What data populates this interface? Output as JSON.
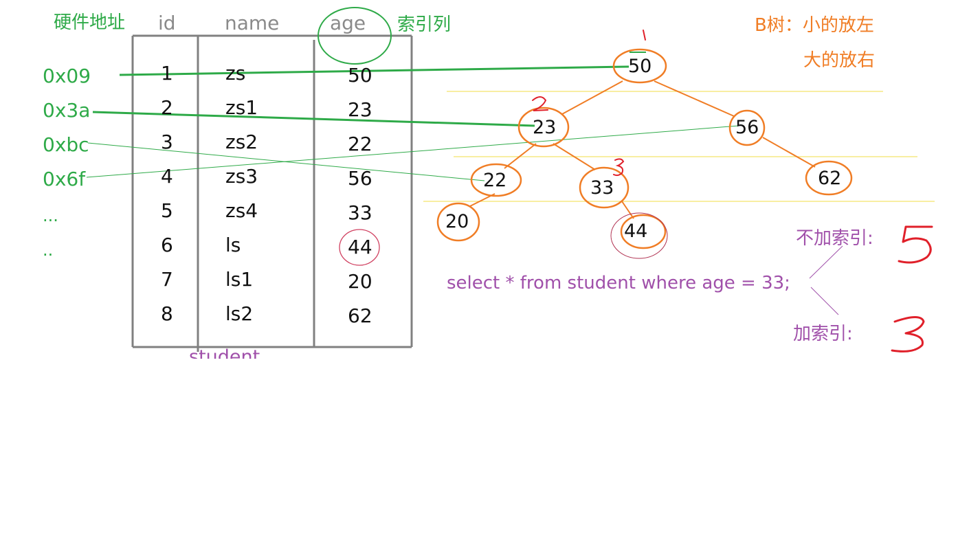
{
  "addresses": {
    "header": "硬件地址",
    "items": [
      "0x09",
      "0x3a",
      "0xbc",
      "0x6f",
      "...",
      ".."
    ]
  },
  "table": {
    "headers": {
      "id": "id",
      "name": "name",
      "age": "age"
    },
    "rows": [
      {
        "id": "1",
        "name": "zs",
        "age": "50"
      },
      {
        "id": "2",
        "name": "zs1",
        "age": "23"
      },
      {
        "id": "3",
        "name": "zs2",
        "age": "22"
      },
      {
        "id": "4",
        "name": "zs3",
        "age": "56"
      },
      {
        "id": "5",
        "name": "zs4",
        "age": "33"
      },
      {
        "id": "6",
        "name": "ls",
        "age": "44"
      },
      {
        "id": "7",
        "name": "ls1",
        "age": "20"
      },
      {
        "id": "8",
        "name": "ls2",
        "age": "62"
      }
    ],
    "caption": "student"
  },
  "index_column_label": "索引列",
  "btree": {
    "rule_line1": "B树：小的放左",
    "rule_line2": "大的放右",
    "nodes": [
      "50",
      "23",
      "56",
      "22",
      "33",
      "62",
      "20",
      "44"
    ],
    "step_marks": [
      "1",
      "2",
      "3"
    ]
  },
  "query": {
    "sql": "select * from student where age = 33;",
    "no_index_label": "不加索引:",
    "no_index_count": "5",
    "with_index_label": "加索引:",
    "with_index_count": "3"
  },
  "colors": {
    "green": "#2eaa48",
    "orange": "#f07d25",
    "purple": "#a050aa",
    "red": "#e0202a",
    "gray": "#808080",
    "guide_yellow": "#f3e36a"
  }
}
